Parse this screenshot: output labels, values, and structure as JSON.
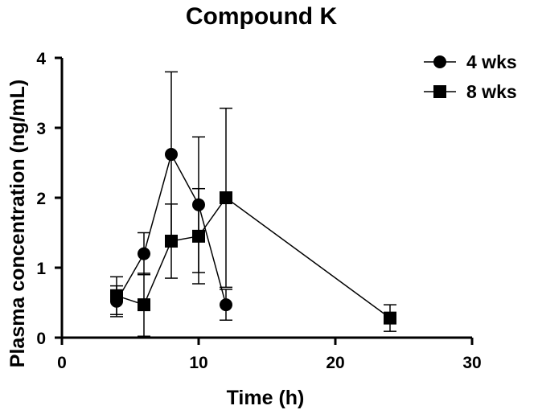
{
  "chart_data": {
    "type": "line",
    "title": "Compound  K",
    "xlabel": "Time (h)",
    "ylabel": "Plasma concentration (ng/mL)",
    "xlim": [
      0,
      30
    ],
    "ylim": [
      0,
      4
    ],
    "xticks": [
      "0",
      "10",
      "20",
      "30"
    ],
    "yticks": [
      "0",
      "1",
      "2",
      "3",
      "4"
    ],
    "grid": false,
    "legend_position": "top-right",
    "series": [
      {
        "name": "4 wks",
        "marker": "circle",
        "color": "#000000",
        "x": [
          4,
          6,
          8,
          10,
          12
        ],
        "y": [
          0.52,
          1.2,
          2.62,
          1.9,
          0.47
        ],
        "err": [
          0.22,
          0.3,
          1.18,
          0.97,
          0.22
        ]
      },
      {
        "name": "8 wks",
        "marker": "square",
        "color": "#000000",
        "x": [
          4,
          6,
          8,
          10,
          12,
          24
        ],
        "y": [
          0.6,
          0.47,
          1.38,
          1.45,
          2.0,
          0.28
        ],
        "err": [
          0.27,
          0.45,
          0.53,
          0.68,
          1.28,
          0.19
        ]
      }
    ]
  }
}
